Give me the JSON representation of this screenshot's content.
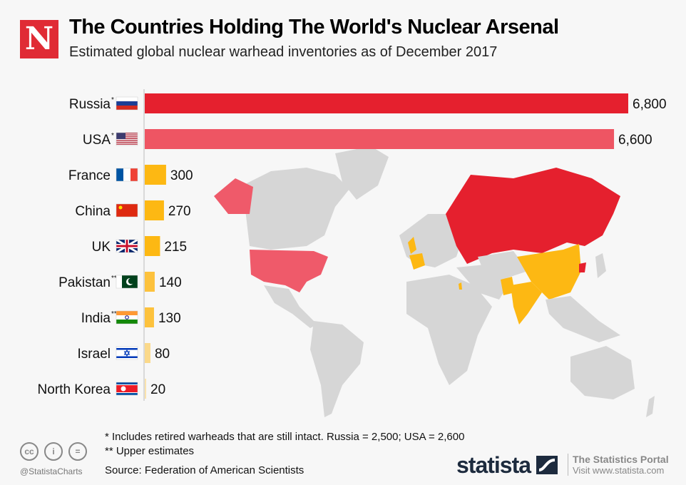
{
  "header": {
    "logo_letter": "N",
    "title": "The Countries Holding The World's Nuclear Arsenal",
    "subtitle": "Estimated global nuclear warhead inventories as of December 2017"
  },
  "chart_data": {
    "type": "bar",
    "orientation": "horizontal",
    "title": "The Countries Holding The World's Nuclear Arsenal",
    "subtitle": "Estimated global nuclear warhead inventories as of December 2017",
    "categories": [
      "Russia",
      "USA",
      "France",
      "China",
      "UK",
      "Pakistan",
      "India",
      "Israel",
      "North Korea"
    ],
    "markers": [
      "*",
      "*",
      "",
      "",
      "",
      "**",
      "**",
      "",
      ""
    ],
    "values": [
      6800,
      6600,
      300,
      270,
      215,
      140,
      130,
      80,
      20
    ],
    "value_labels": [
      "6,800",
      "6,600",
      "300",
      "270",
      "215",
      "140",
      "130",
      "80",
      "20"
    ],
    "colors": [
      "#e5202e",
      "#ee5563",
      "#fdb813",
      "#fdb813",
      "#fdb813",
      "#fdc23d",
      "#fdc23d",
      "#fbd98a",
      "#fbe3ad"
    ],
    "xlim": [
      0,
      6800
    ],
    "grid": false,
    "legend": "none",
    "background_map": "world map highlighting nuclear states"
  },
  "footer": {
    "note1": "*   Includes retired warheads that are still intact. Russia = 2,500; USA = 2,600",
    "note2": "** Upper estimates",
    "source": "Source: Federation of American Scientists",
    "handle": "@StatistaCharts",
    "cc_icons": [
      "cc",
      "i",
      "="
    ],
    "brand": "statista",
    "portal_title": "The Statistics Portal",
    "portal_url": "Visit www.statista.com"
  }
}
